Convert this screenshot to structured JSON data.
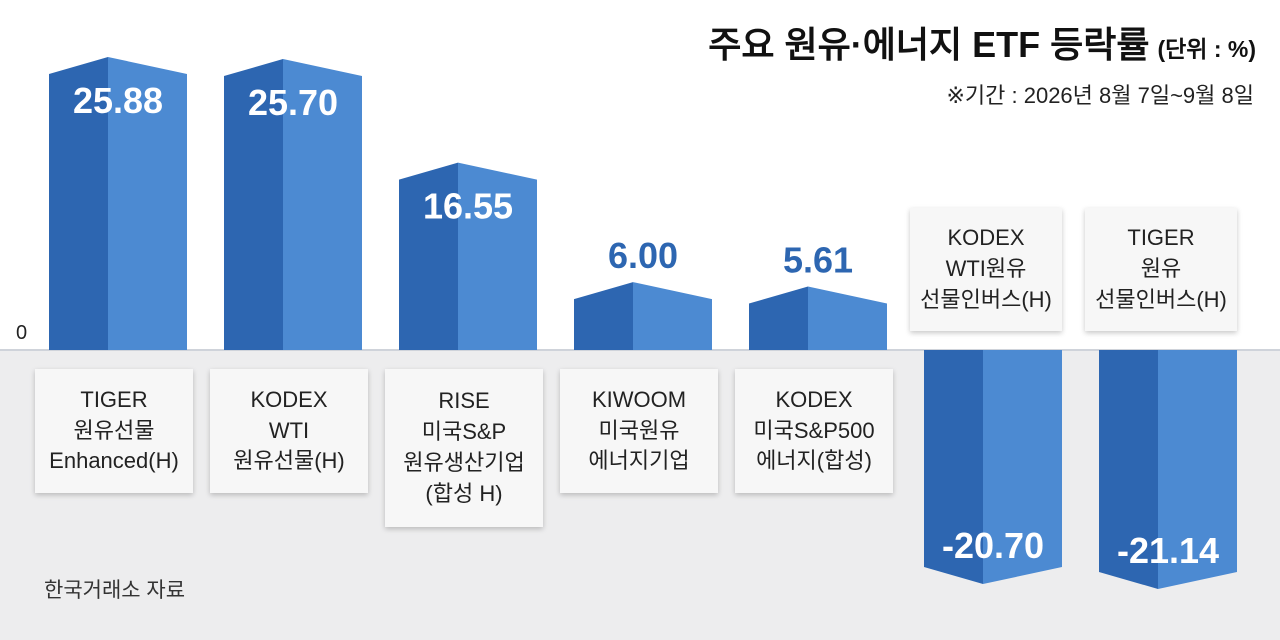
{
  "title": "주요 원유·에너지 ETF 등락률",
  "unit": "(단위 : %)",
  "subtitle": "※기간 : 2026년 8월 7일~9월 8일",
  "source": "한국거래소 자료",
  "zero_label": "0",
  "colors": {
    "bar_dark": "#2d66b1",
    "bar_light": "#4c8ad2",
    "positive_label": "#2d66b1",
    "negative_label": "#ffffff"
  },
  "chart_data": {
    "type": "bar",
    "title": "주요 원유·에너지 ETF 등락률",
    "unit": "%",
    "categories": [
      "TIGER\n원유선물\nEnhanced(H)",
      "KODEX\nWTI\n원유선물(H)",
      "RISE\n미국S&P\n원유생산기업\n(합성 H)",
      "KIWOOM\n미국원유\n에너지기업",
      "KODEX\n미국S&P500\n에너지(합성)",
      "KODEX\nWTI원유\n선물인버스(H)",
      "TIGER\n원유\n선물인버스(H)"
    ],
    "values": [
      25.88,
      25.7,
      16.55,
      6.0,
      5.61,
      -20.7,
      -21.14
    ],
    "labels": [
      "25.88",
      "25.70",
      "16.55",
      "6.00",
      "5.61",
      "-20.70",
      "-21.14"
    ],
    "ylim": [
      -21.14,
      25.88
    ],
    "grid": false,
    "legend": "none"
  }
}
